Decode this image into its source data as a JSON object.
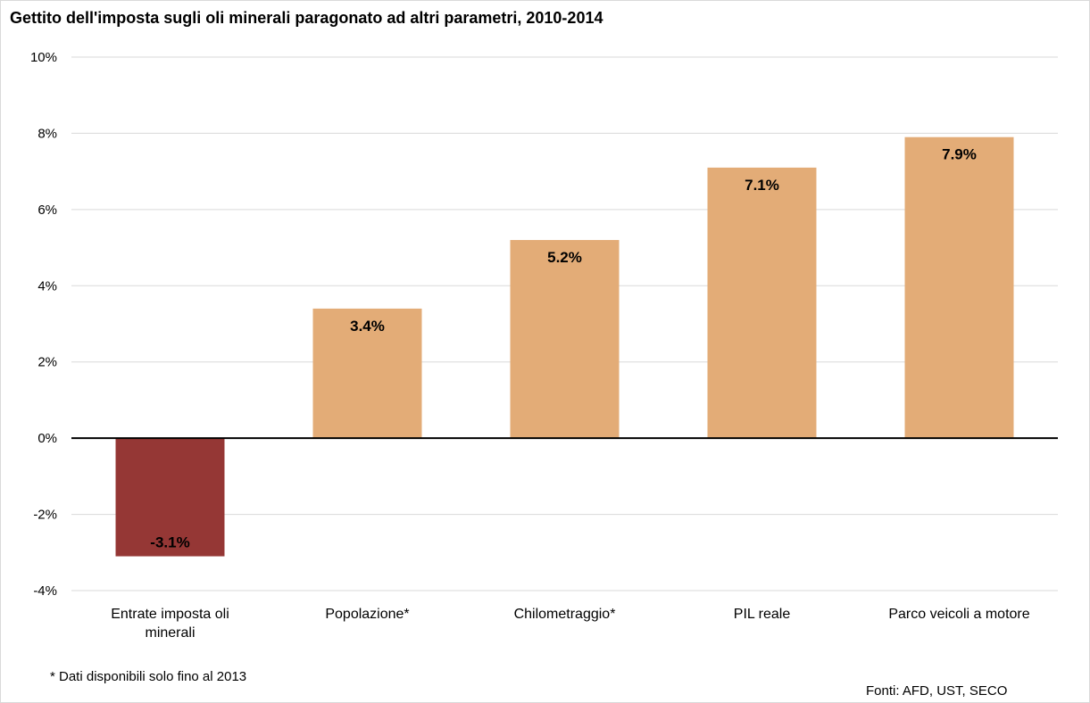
{
  "chart_data": {
    "type": "bar",
    "title": "Gettito dell'imposta sugli oli minerali paragonato ad altri parametri, 2010-2014",
    "xlabel": "",
    "ylabel": "",
    "ylim": [
      -4,
      10
    ],
    "yticks": [
      10,
      8,
      6,
      4,
      2,
      0,
      -2,
      -4
    ],
    "ytick_labels": [
      "10%",
      "8%",
      "6%",
      "4%",
      "2%",
      "0%",
      "-2%",
      "-4%"
    ],
    "grid": true,
    "legend": "none",
    "categories": [
      [
        "Entrate imposta oli",
        "minerali"
      ],
      [
        "Popolazione*"
      ],
      [
        "Chilometraggio*"
      ],
      [
        "PIL reale"
      ],
      [
        "Parco veicoli a motore"
      ]
    ],
    "values": [
      -3.1,
      3.4,
      5.2,
      7.1,
      7.9
    ],
    "data_labels": [
      "-3.1%",
      "3.4%",
      "5.2%",
      "7.1%",
      "7.9%"
    ],
    "colors": {
      "negative": "#953735",
      "positive": "#e3ac77",
      "grid": "#d9d9d9",
      "zero_line": "#000000"
    }
  },
  "footnote": "* Dati disponibili solo fino al 2013",
  "source": "Fonti: AFD, UST, SECO"
}
